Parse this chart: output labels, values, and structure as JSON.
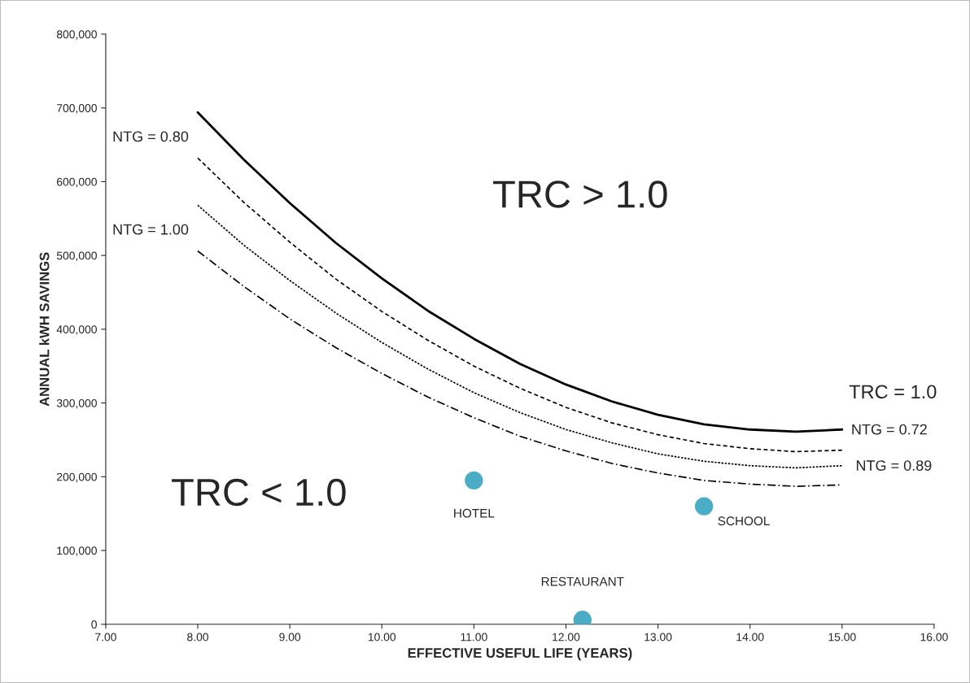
{
  "chart_data": {
    "type": "line",
    "xlabel": "EFFECTIVE USEFUL LIFE (YEARS)",
    "ylabel": "ANNUAL kWH SAVINGS",
    "x": [
      8,
      8.5,
      9,
      9.5,
      10,
      10.5,
      11,
      11.5,
      12,
      12.5,
      13,
      13.5,
      14,
      14.5,
      15
    ],
    "series": [
      {
        "color": "#000000",
        "line_style": "solid",
        "values": [
          694000,
          630000,
          571000,
          517000,
          469000,
          425000,
          387000,
          353000,
          325000,
          302000,
          284000,
          271000,
          264000,
          261000,
          264000
        ]
      },
      {
        "color": "#000000",
        "line_style": "dashed",
        "values": [
          632000,
          572000,
          518000,
          468000,
          424000,
          385000,
          350000,
          320000,
          294000,
          273000,
          257000,
          245000,
          238000,
          234000,
          236000
        ]
      },
      {
        "color": "#000000",
        "line_style": "dotted",
        "values": [
          568000,
          514000,
          466000,
          422000,
          382000,
          346000,
          314000,
          287000,
          264000,
          246000,
          231000,
          221000,
          215000,
          212000,
          215000
        ]
      },
      {
        "color": "#000000",
        "line_style": "dashdot",
        "values": [
          506000,
          458000,
          414000,
          375000,
          340000,
          308000,
          280000,
          255000,
          235000,
          218000,
          205000,
          195000,
          190000,
          187000,
          189000
        ]
      },
      {
        "type": "scatter",
        "color": "#4bacc6",
        "marker": "circle",
        "x": [
          11.0,
          13.5,
          12.18
        ],
        "values": [
          195000,
          160000,
          6000
        ]
      }
    ],
    "annotations": [
      {
        "text": "HOTEL",
        "x": 11.0,
        "y": 195000
      },
      {
        "text": "SCHOOL",
        "x": 13.5,
        "y": 160000
      },
      {
        "text": "RESTAURANT",
        "x": 12.18,
        "y": 6000
      },
      {
        "text": "NTG = 0.80",
        "x": 8,
        "y": 632000
      },
      {
        "text": "NTG = 1.00",
        "x": 8,
        "y": 506000
      },
      {
        "text": "NTG = 0.72",
        "x": 15,
        "y": 264000
      },
      {
        "text": "NTG = 0.89",
        "x": 15,
        "y": 189000
      },
      {
        "text": "TRC = 1.0",
        "x": 15,
        "y": 264000
      },
      "TRC > 1.0",
      "TRC < 1.0"
    ],
    "xlim": [
      7,
      16
    ],
    "xticks": [
      {
        "value": 7,
        "label": "7.00"
      },
      {
        "value": 8,
        "label": "8.00"
      },
      {
        "value": 9,
        "label": "9.00"
      },
      {
        "value": 10,
        "label": "10.00"
      },
      {
        "value": 11,
        "label": "11.00"
      },
      {
        "value": 12,
        "label": "12.00"
      },
      {
        "value": 13,
        "label": "13.00"
      },
      {
        "value": 14,
        "label": "14.00"
      },
      {
        "value": 15,
        "label": "15.00"
      },
      {
        "value": 16,
        "label": "16.00"
      }
    ],
    "ylim": [
      0,
      800000
    ],
    "yticks": [
      0,
      {
        "value": 100000,
        "label": "100,000"
      },
      {
        "value": 200000,
        "label": "200,000"
      },
      {
        "value": 300000,
        "label": "300,000"
      },
      {
        "value": 400000,
        "label": "400,000"
      },
      {
        "value": 500000,
        "label": "500,000"
      },
      {
        "value": 600000,
        "label": "600,000"
      },
      {
        "value": 700000,
        "label": "700,000"
      },
      {
        "value": 800000,
        "label": "800,000"
      }
    ],
    "grid": false,
    "legend": false
  }
}
